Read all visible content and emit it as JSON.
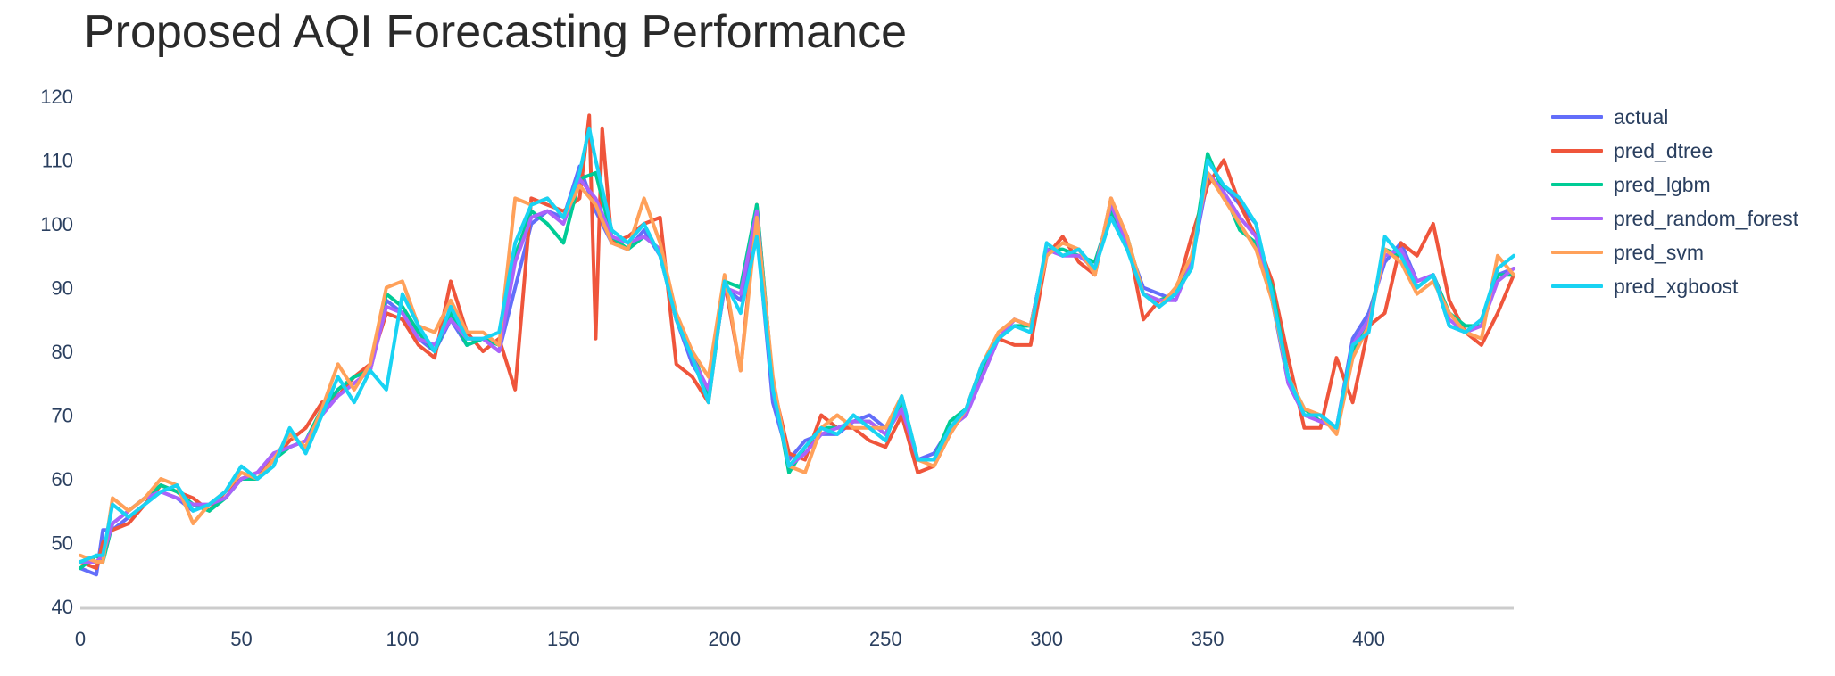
{
  "chart_data": {
    "type": "line",
    "title": "Proposed AQI Forecasting Performance",
    "xlabel": "",
    "ylabel": "",
    "xlim": [
      0,
      445
    ],
    "ylim": [
      40,
      120
    ],
    "x_ticks": [
      0,
      50,
      100,
      150,
      200,
      250,
      300,
      350,
      400
    ],
    "y_ticks": [
      40,
      50,
      60,
      70,
      80,
      90,
      100,
      110,
      120
    ],
    "grid": false,
    "legend_position": "top-right",
    "series": [
      {
        "name": "actual",
        "color": "#636efa",
        "x": [
          0,
          5,
          7,
          10,
          15,
          20,
          25,
          30,
          35,
          40,
          45,
          50,
          55,
          60,
          65,
          70,
          75,
          80,
          85,
          90,
          95,
          100,
          105,
          110,
          115,
          120,
          125,
          130,
          135,
          140,
          145,
          150,
          155,
          160,
          165,
          170,
          175,
          180,
          185,
          190,
          195,
          200,
          205,
          210,
          215,
          220,
          225,
          230,
          235,
          240,
          245,
          250,
          255,
          260,
          265,
          270,
          275,
          280,
          285,
          290,
          295,
          300,
          305,
          310,
          315,
          320,
          325,
          330,
          335,
          340,
          345,
          350,
          355,
          360,
          365,
          370,
          375,
          380,
          385,
          390,
          395,
          400,
          405,
          410,
          415,
          420,
          425,
          430,
          435,
          440,
          445
        ],
        "y": [
          46,
          45,
          52,
          52,
          54,
          56,
          58,
          57,
          55,
          56,
          57,
          60,
          61,
          64,
          65,
          66,
          70,
          74,
          76,
          77,
          88,
          86,
          82,
          80,
          85,
          81,
          82,
          80,
          90,
          100,
          102,
          101,
          109,
          102,
          97,
          96,
          99,
          95,
          85,
          78,
          74,
          90,
          88,
          99,
          72,
          63,
          66,
          67,
          67,
          69,
          70,
          68,
          72,
          63,
          64,
          68,
          70,
          76,
          82,
          85,
          84,
          96,
          95,
          96,
          93,
          102,
          97,
          90,
          89,
          88,
          94,
          107,
          106,
          103,
          100,
          88,
          75,
          70,
          70,
          68,
          82,
          86,
          94,
          97,
          91,
          92,
          84,
          83,
          85,
          92,
          93
        ]
      },
      {
        "name": "pred_dtree",
        "color": "#ef553b",
        "x": [
          0,
          5,
          7,
          10,
          15,
          20,
          25,
          30,
          35,
          40,
          45,
          50,
          55,
          60,
          65,
          70,
          75,
          80,
          85,
          90,
          95,
          100,
          105,
          110,
          115,
          120,
          125,
          130,
          135,
          140,
          145,
          150,
          155,
          158,
          160,
          162,
          165,
          170,
          175,
          180,
          185,
          190,
          195,
          200,
          205,
          210,
          215,
          220,
          225,
          230,
          235,
          240,
          245,
          250,
          255,
          260,
          265,
          270,
          275,
          280,
          285,
          290,
          295,
          300,
          305,
          310,
          315,
          320,
          325,
          330,
          335,
          340,
          345,
          350,
          355,
          360,
          365,
          370,
          375,
          380,
          385,
          390,
          395,
          400,
          405,
          410,
          415,
          420,
          425,
          430,
          435,
          440,
          445
        ],
        "y": [
          47,
          46,
          50,
          52,
          53,
          56,
          59,
          58,
          57,
          55,
          58,
          60,
          61,
          63,
          66,
          68,
          72,
          73,
          76,
          78,
          86,
          85,
          81,
          79,
          91,
          83,
          80,
          82,
          74,
          104,
          103,
          102,
          104,
          117,
          82,
          115,
          97,
          98,
          100,
          101,
          78,
          76,
          72,
          91,
          77,
          103,
          75,
          64,
          63,
          70,
          68,
          68,
          66,
          65,
          70,
          61,
          62,
          67,
          71,
          78,
          82,
          81,
          81,
          95,
          98,
          94,
          92,
          104,
          98,
          85,
          88,
          89,
          98,
          106,
          110,
          103,
          98,
          91,
          79,
          68,
          68,
          79,
          72,
          84,
          86,
          97,
          95,
          100,
          88,
          83,
          81,
          86,
          92
        ]
      },
      {
        "name": "pred_lgbm",
        "color": "#00cc96",
        "x": [
          0,
          5,
          7,
          10,
          15,
          20,
          25,
          30,
          35,
          40,
          45,
          50,
          55,
          60,
          65,
          70,
          75,
          80,
          85,
          90,
          95,
          100,
          105,
          110,
          115,
          120,
          125,
          130,
          135,
          140,
          145,
          150,
          155,
          160,
          165,
          170,
          175,
          180,
          185,
          190,
          195,
          200,
          205,
          210,
          215,
          220,
          225,
          230,
          235,
          240,
          245,
          250,
          255,
          260,
          265,
          270,
          275,
          280,
          285,
          290,
          295,
          300,
          305,
          310,
          315,
          320,
          325,
          330,
          335,
          340,
          345,
          350,
          355,
          360,
          365,
          370,
          375,
          380,
          385,
          390,
          395,
          400,
          405,
          410,
          415,
          420,
          425,
          430,
          435,
          440,
          445
        ],
        "y": [
          46,
          48,
          47,
          53,
          55,
          57,
          59,
          58,
          56,
          55,
          57,
          60,
          60,
          63,
          65,
          66,
          71,
          74,
          76,
          77,
          89,
          87,
          83,
          80,
          86,
          81,
          82,
          81,
          95,
          102,
          100,
          97,
          107,
          108,
          98,
          96,
          98,
          96,
          85,
          80,
          73,
          91,
          90,
          103,
          75,
          61,
          65,
          68,
          68,
          69,
          69,
          67,
          72,
          63,
          63,
          69,
          71,
          77,
          82,
          84,
          84,
          96,
          96,
          95,
          94,
          102,
          98,
          89,
          88,
          89,
          94,
          111,
          105,
          99,
          97,
          90,
          76,
          71,
          69,
          68,
          80,
          85,
          96,
          95,
          90,
          92,
          86,
          84,
          84,
          92,
          92
        ]
      },
      {
        "name": "pred_random_forest",
        "color": "#ab63fa",
        "x": [
          0,
          5,
          7,
          10,
          15,
          20,
          25,
          30,
          35,
          40,
          45,
          50,
          55,
          60,
          65,
          70,
          75,
          80,
          85,
          90,
          95,
          100,
          105,
          110,
          115,
          120,
          125,
          130,
          135,
          140,
          145,
          150,
          155,
          160,
          165,
          170,
          175,
          180,
          185,
          190,
          195,
          200,
          205,
          210,
          215,
          220,
          225,
          230,
          235,
          240,
          245,
          250,
          255,
          260,
          265,
          270,
          275,
          280,
          285,
          290,
          295,
          300,
          305,
          310,
          315,
          320,
          325,
          330,
          335,
          340,
          345,
          350,
          355,
          360,
          365,
          370,
          375,
          380,
          385,
          390,
          395,
          400,
          405,
          410,
          415,
          420,
          425,
          430,
          435,
          440,
          445
        ],
        "y": [
          47,
          47,
          48,
          53,
          55,
          57,
          58,
          57,
          56,
          56,
          57,
          60,
          61,
          64,
          65,
          66,
          70,
          73,
          75,
          77,
          87,
          86,
          82,
          81,
          85,
          82,
          82,
          80,
          94,
          101,
          102,
          100,
          107,
          104,
          98,
          97,
          98,
          96,
          85,
          79,
          74,
          90,
          89,
          102,
          74,
          62,
          64,
          67,
          68,
          69,
          69,
          67,
          71,
          63,
          63,
          68,
          70,
          76,
          82,
          85,
          84,
          96,
          95,
          95,
          93,
          103,
          97,
          89,
          88,
          88,
          94,
          108,
          105,
          101,
          98,
          89,
          75,
          70,
          69,
          68,
          81,
          85,
          95,
          96,
          91,
          92,
          85,
          83,
          84,
          91,
          93
        ]
      },
      {
        "name": "pred_svm",
        "color": "#ffa15a",
        "x": [
          0,
          5,
          7,
          10,
          15,
          20,
          25,
          30,
          35,
          40,
          45,
          50,
          55,
          60,
          65,
          70,
          75,
          80,
          85,
          90,
          95,
          100,
          105,
          110,
          115,
          120,
          125,
          130,
          135,
          140,
          145,
          150,
          155,
          160,
          165,
          170,
          175,
          180,
          185,
          190,
          195,
          200,
          205,
          210,
          215,
          220,
          225,
          230,
          235,
          240,
          245,
          250,
          255,
          260,
          265,
          270,
          275,
          280,
          285,
          290,
          295,
          300,
          305,
          310,
          315,
          320,
          325,
          330,
          335,
          340,
          345,
          350,
          355,
          360,
          365,
          370,
          375,
          380,
          385,
          390,
          395,
          400,
          405,
          410,
          415,
          420,
          425,
          430,
          435,
          440,
          445
        ],
        "y": [
          48,
          47,
          47,
          57,
          55,
          57,
          60,
          59,
          53,
          56,
          58,
          61,
          60,
          63,
          67,
          65,
          71,
          78,
          74,
          78,
          90,
          91,
          84,
          83,
          88,
          83,
          83,
          81,
          104,
          103,
          104,
          101,
          106,
          103,
          97,
          96,
          104,
          97,
          86,
          80,
          76,
          92,
          77,
          101,
          76,
          62,
          61,
          68,
          70,
          68,
          68,
          68,
          73,
          63,
          62,
          67,
          71,
          78,
          83,
          85,
          84,
          95,
          97,
          96,
          92,
          104,
          98,
          89,
          87,
          90,
          95,
          108,
          104,
          100,
          96,
          88,
          76,
          71,
          70,
          67,
          79,
          84,
          96,
          94,
          89,
          91,
          86,
          83,
          82,
          95,
          92
        ]
      },
      {
        "name": "pred_xgboost",
        "color": "#19d3f3",
        "x": [
          0,
          5,
          7,
          10,
          15,
          20,
          25,
          30,
          35,
          40,
          45,
          50,
          55,
          60,
          65,
          70,
          75,
          80,
          85,
          90,
          95,
          100,
          105,
          110,
          115,
          120,
          125,
          130,
          135,
          140,
          145,
          150,
          155,
          158,
          160,
          165,
          170,
          175,
          180,
          185,
          190,
          195,
          200,
          205,
          210,
          215,
          220,
          225,
          230,
          235,
          240,
          245,
          250,
          255,
          260,
          265,
          270,
          275,
          280,
          285,
          290,
          295,
          300,
          305,
          310,
          315,
          320,
          325,
          330,
          335,
          340,
          345,
          350,
          355,
          360,
          365,
          370,
          375,
          380,
          385,
          390,
          395,
          400,
          405,
          410,
          415,
          420,
          425,
          430,
          435,
          440,
          445
        ],
        "y": [
          47,
          48,
          48,
          56,
          54,
          56,
          58,
          59,
          55,
          56,
          58,
          62,
          60,
          62,
          68,
          64,
          70,
          76,
          72,
          77,
          74,
          89,
          84,
          80,
          87,
          82,
          82,
          83,
          97,
          103,
          104,
          101,
          108,
          115,
          110,
          99,
          97,
          100,
          95,
          85,
          79,
          72,
          91,
          86,
          98,
          74,
          62,
          65,
          68,
          67,
          70,
          68,
          66,
          73,
          63,
          63,
          68,
          71,
          78,
          82,
          84,
          83,
          97,
          95,
          96,
          93,
          101,
          96,
          89,
          87,
          89,
          93,
          110,
          106,
          104,
          100,
          89,
          76,
          70,
          70,
          68,
          81,
          83,
          98,
          95,
          90,
          92,
          84,
          83,
          85,
          93,
          95
        ]
      }
    ]
  }
}
